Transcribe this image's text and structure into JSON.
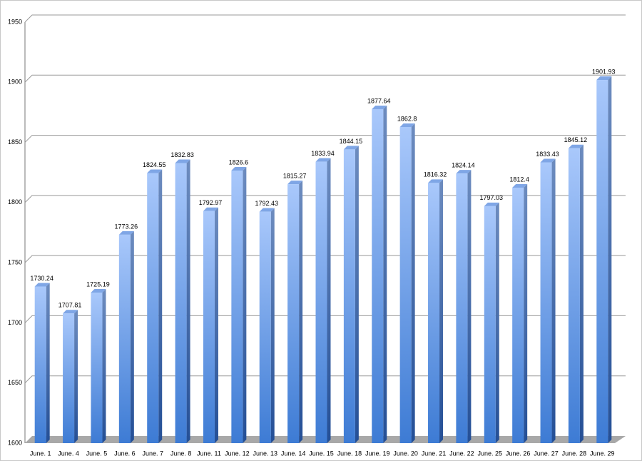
{
  "chart_data": {
    "type": "bar",
    "categories": [
      "June. 1",
      "June. 4",
      "June. 5",
      "June. 6",
      "June. 7",
      "June. 8",
      "June. 11",
      "June. 12",
      "June. 13",
      "June. 14",
      "June. 15",
      "June. 18",
      "June. 19",
      "June. 20",
      "June. 21",
      "June. 22",
      "June. 25",
      "June. 26",
      "June. 27",
      "June. 28",
      "June. 29"
    ],
    "values": [
      1730.24,
      1707.81,
      1725.19,
      1773.26,
      1824.55,
      1832.83,
      1792.97,
      1826.6,
      1792.43,
      1815.27,
      1833.94,
      1844.15,
      1877.64,
      1862.8,
      1816.32,
      1824.14,
      1797.03,
      1812.4,
      1833.43,
      1845.12,
      1901.93
    ],
    "color": "#4a86d8",
    "ylim": [
      1600,
      1950
    ],
    "yticks": [
      1600,
      1650,
      1700,
      1750,
      1800,
      1850,
      1900,
      1950
    ],
    "grid": true
  }
}
